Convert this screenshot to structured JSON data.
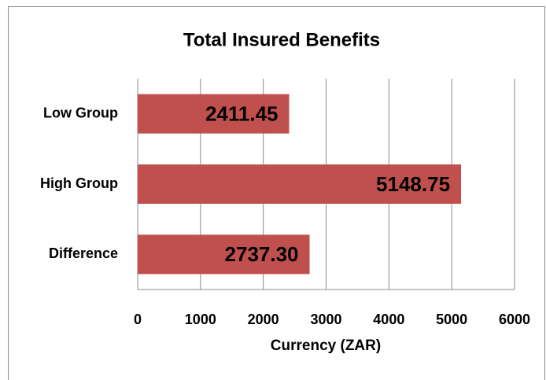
{
  "chart_data": {
    "type": "bar",
    "orientation": "horizontal",
    "title": "Total Insured Benefits",
    "categories": [
      "Low Group",
      "High Group",
      "Difference"
    ],
    "values": [
      2411.45,
      5148.75,
      2737.3
    ],
    "value_labels": [
      "2411.45",
      "5148.75",
      "2737.30"
    ],
    "color": "#c0504d",
    "x_label": "Currency (ZAR)",
    "xlim": [
      0,
      6000
    ],
    "xticks": [
      0,
      1000,
      2000,
      3000,
      4000,
      5000,
      6000
    ],
    "grid": true
  }
}
